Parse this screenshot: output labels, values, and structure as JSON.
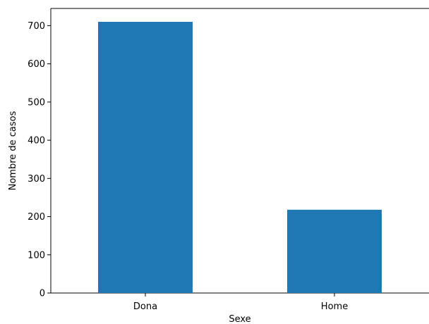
{
  "chart_data": {
    "type": "bar",
    "title": "",
    "xlabel": "Sexe",
    "ylabel": "Nombre de casos",
    "categories": [
      "Dona",
      "Home"
    ],
    "values": [
      710,
      218
    ],
    "ylim": [
      0,
      745
    ],
    "yticks": [
      0,
      100,
      200,
      300,
      400,
      500,
      600,
      700
    ],
    "grid": false,
    "legend": "none",
    "colors": {
      "bar": "#1f77b4",
      "axis": "#000000"
    }
  }
}
